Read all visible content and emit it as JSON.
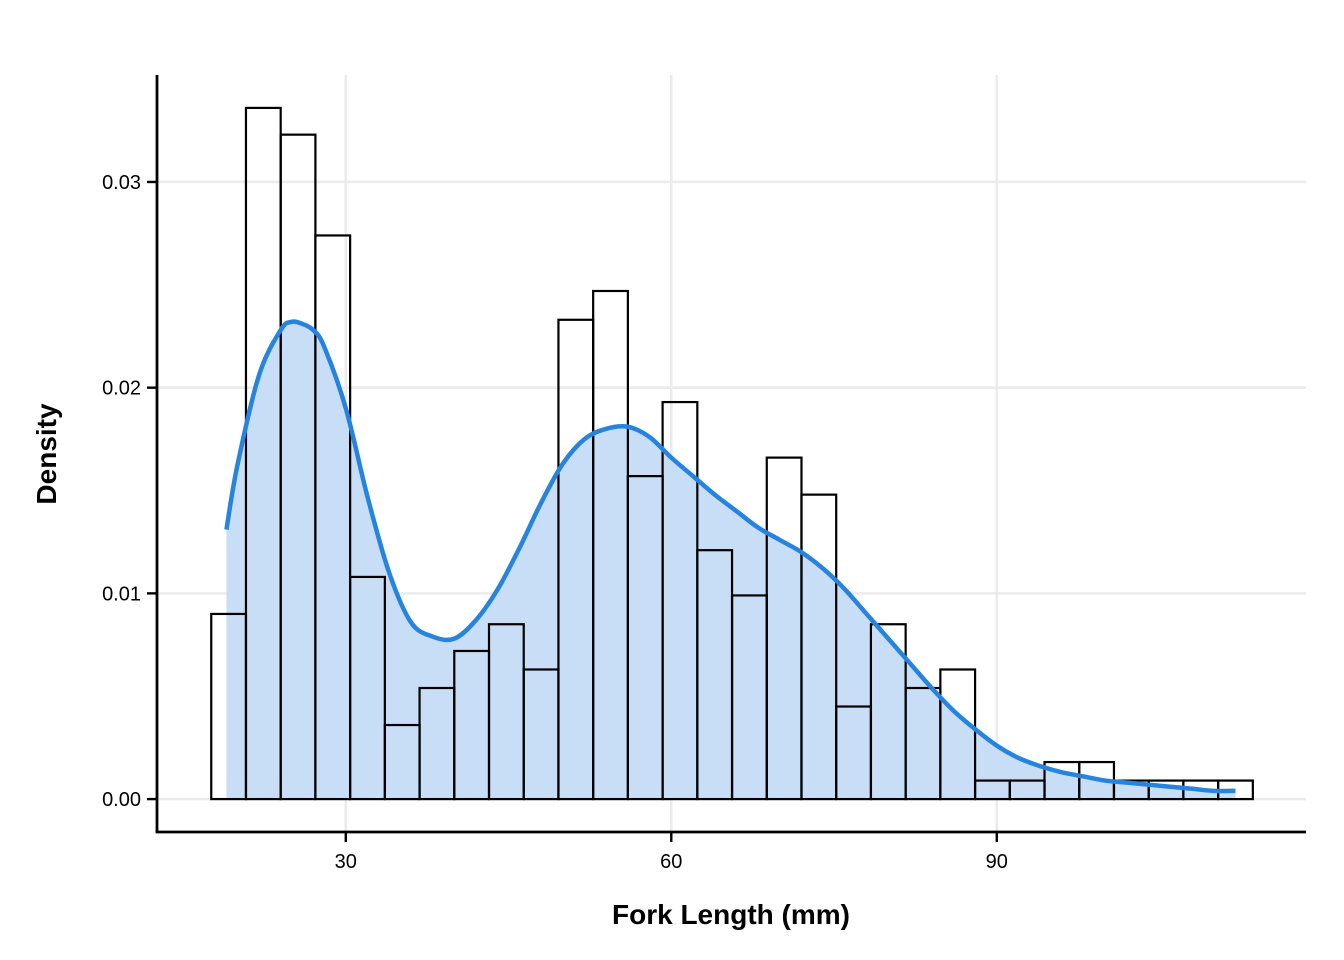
{
  "chart_data": {
    "type": "bar",
    "xlabel": "Fork Length (mm)",
    "ylabel": "Density",
    "xlim": [
      12.6,
      118.5
    ],
    "ylim": [
      -0.0016,
      0.0352
    ],
    "x_ticks": [
      30,
      60,
      90
    ],
    "y_ticks": [
      0.0,
      0.01,
      0.02,
      0.03
    ],
    "x_tick_labels": [
      "30",
      "60",
      "90"
    ],
    "y_tick_labels": [
      "0.00",
      "0.01",
      "0.02",
      "0.03"
    ],
    "grid": true,
    "histogram": {
      "bin_width": 3.2,
      "bin_starts": [
        17.6,
        20.8,
        24.0,
        27.2,
        30.4,
        33.6,
        36.8,
        40.0,
        43.2,
        46.4,
        49.6,
        52.8,
        56.0,
        59.2,
        62.4,
        65.6,
        68.8,
        72.0,
        75.2,
        78.4,
        81.6,
        84.8,
        88.0,
        91.2,
        94.4,
        97.6,
        100.8,
        104.0,
        107.2,
        110.4
      ],
      "values": [
        0.009,
        0.0336,
        0.0323,
        0.0274,
        0.0108,
        0.0036,
        0.0054,
        0.0072,
        0.0085,
        0.0063,
        0.0233,
        0.0247,
        0.0157,
        0.0193,
        0.0121,
        0.0099,
        0.0166,
        0.0148,
        0.0045,
        0.0085,
        0.0054,
        0.0063,
        0.0009,
        0.0009,
        0.0018,
        0.0018,
        0.0009,
        0.0009,
        0.0009,
        0.0009
      ],
      "fill": "#ffffff",
      "stroke": "#000000"
    },
    "density": {
      "x": [
        19,
        20,
        22,
        24,
        25,
        26,
        27,
        28,
        30,
        32,
        34,
        36,
        38,
        40,
        42,
        44,
        46,
        48,
        50,
        52,
        54,
        56,
        58,
        60,
        62,
        64,
        66,
        68,
        70,
        72,
        74,
        76,
        78,
        80,
        82,
        84,
        86,
        88,
        90,
        92,
        94,
        96,
        98,
        100,
        102,
        104,
        106,
        108,
        110,
        112
      ],
      "y": [
        0.0131,
        0.0162,
        0.0206,
        0.0228,
        0.0232,
        0.0231,
        0.0228,
        0.022,
        0.019,
        0.0147,
        0.011,
        0.0086,
        0.0079,
        0.0078,
        0.0087,
        0.0102,
        0.0122,
        0.0144,
        0.0163,
        0.0175,
        0.018,
        0.0181,
        0.0176,
        0.0166,
        0.0157,
        0.0148,
        0.014,
        0.0132,
        0.0126,
        0.012,
        0.0112,
        0.0102,
        0.009,
        0.0078,
        0.0066,
        0.0054,
        0.0043,
        0.0034,
        0.0026,
        0.002,
        0.0016,
        0.0013,
        0.0011,
        0.0009,
        0.0008,
        0.0007,
        0.0006,
        0.0005,
        0.0004,
        0.0004
      ],
      "line_color": "#2683DE",
      "fill_color": "#C8DEF6"
    }
  }
}
